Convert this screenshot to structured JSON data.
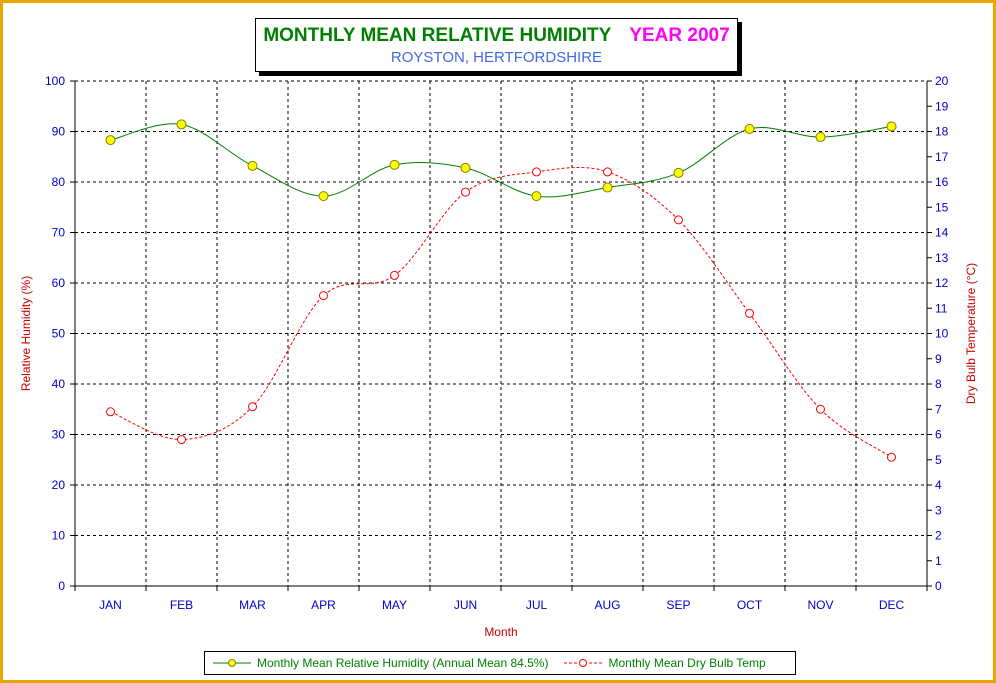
{
  "title": {
    "main": "MONTHLY MEAN RELATIVE HUMIDITY",
    "year": "YEAR 2007",
    "subtitle": "ROYSTON, HERTFORDSHIRE"
  },
  "colors": {
    "frame": "#e8a800",
    "humidity_line": "#008000",
    "humidity_marker": "#ffff00",
    "temp_line": "#ff0000",
    "axis_text": "#0000cd",
    "axis_title": "#cc0000"
  },
  "chart_data": {
    "type": "line",
    "xlabel": "Month",
    "categories": [
      "JAN",
      "FEB",
      "MAR",
      "APR",
      "MAY",
      "JUN",
      "JUL",
      "AUG",
      "SEP",
      "OCT",
      "NOV",
      "DEC"
    ],
    "y_left": {
      "label": "Relative Humidity (%)",
      "lim": [
        0,
        100
      ],
      "ticks": [
        "0",
        "10",
        "20",
        "30",
        "40",
        "50",
        "60",
        "70",
        "80",
        "90",
        "100"
      ]
    },
    "y_right": {
      "label": "Dry Bulb Temperature (°C)",
      "lim": [
        0,
        20
      ],
      "ticks": [
        "0",
        "1",
        "2",
        "3",
        "4",
        "5",
        "6",
        "7",
        "8",
        "9",
        "10",
        "11",
        "12",
        "13",
        "14",
        "15",
        "16",
        "17",
        "18",
        "19",
        "20"
      ]
    },
    "grid": true,
    "legend_position": "bottom",
    "series": [
      {
        "name": "Monthly Mean Relative Humidity (Annual Mean 84.5%)",
        "axis": "left",
        "style": "solid",
        "values": [
          88.3,
          91.4,
          83.2,
          77.2,
          83.4,
          82.8,
          77.2,
          78.9,
          81.8,
          90.5,
          88.9,
          91.0
        ]
      },
      {
        "name": "Monthly Mean Dry Bulb Temp",
        "axis": "right",
        "style": "dashed",
        "values": [
          6.9,
          5.8,
          7.1,
          11.5,
          12.3,
          15.6,
          16.4,
          16.4,
          14.5,
          10.8,
          7.0,
          5.1
        ]
      }
    ]
  }
}
